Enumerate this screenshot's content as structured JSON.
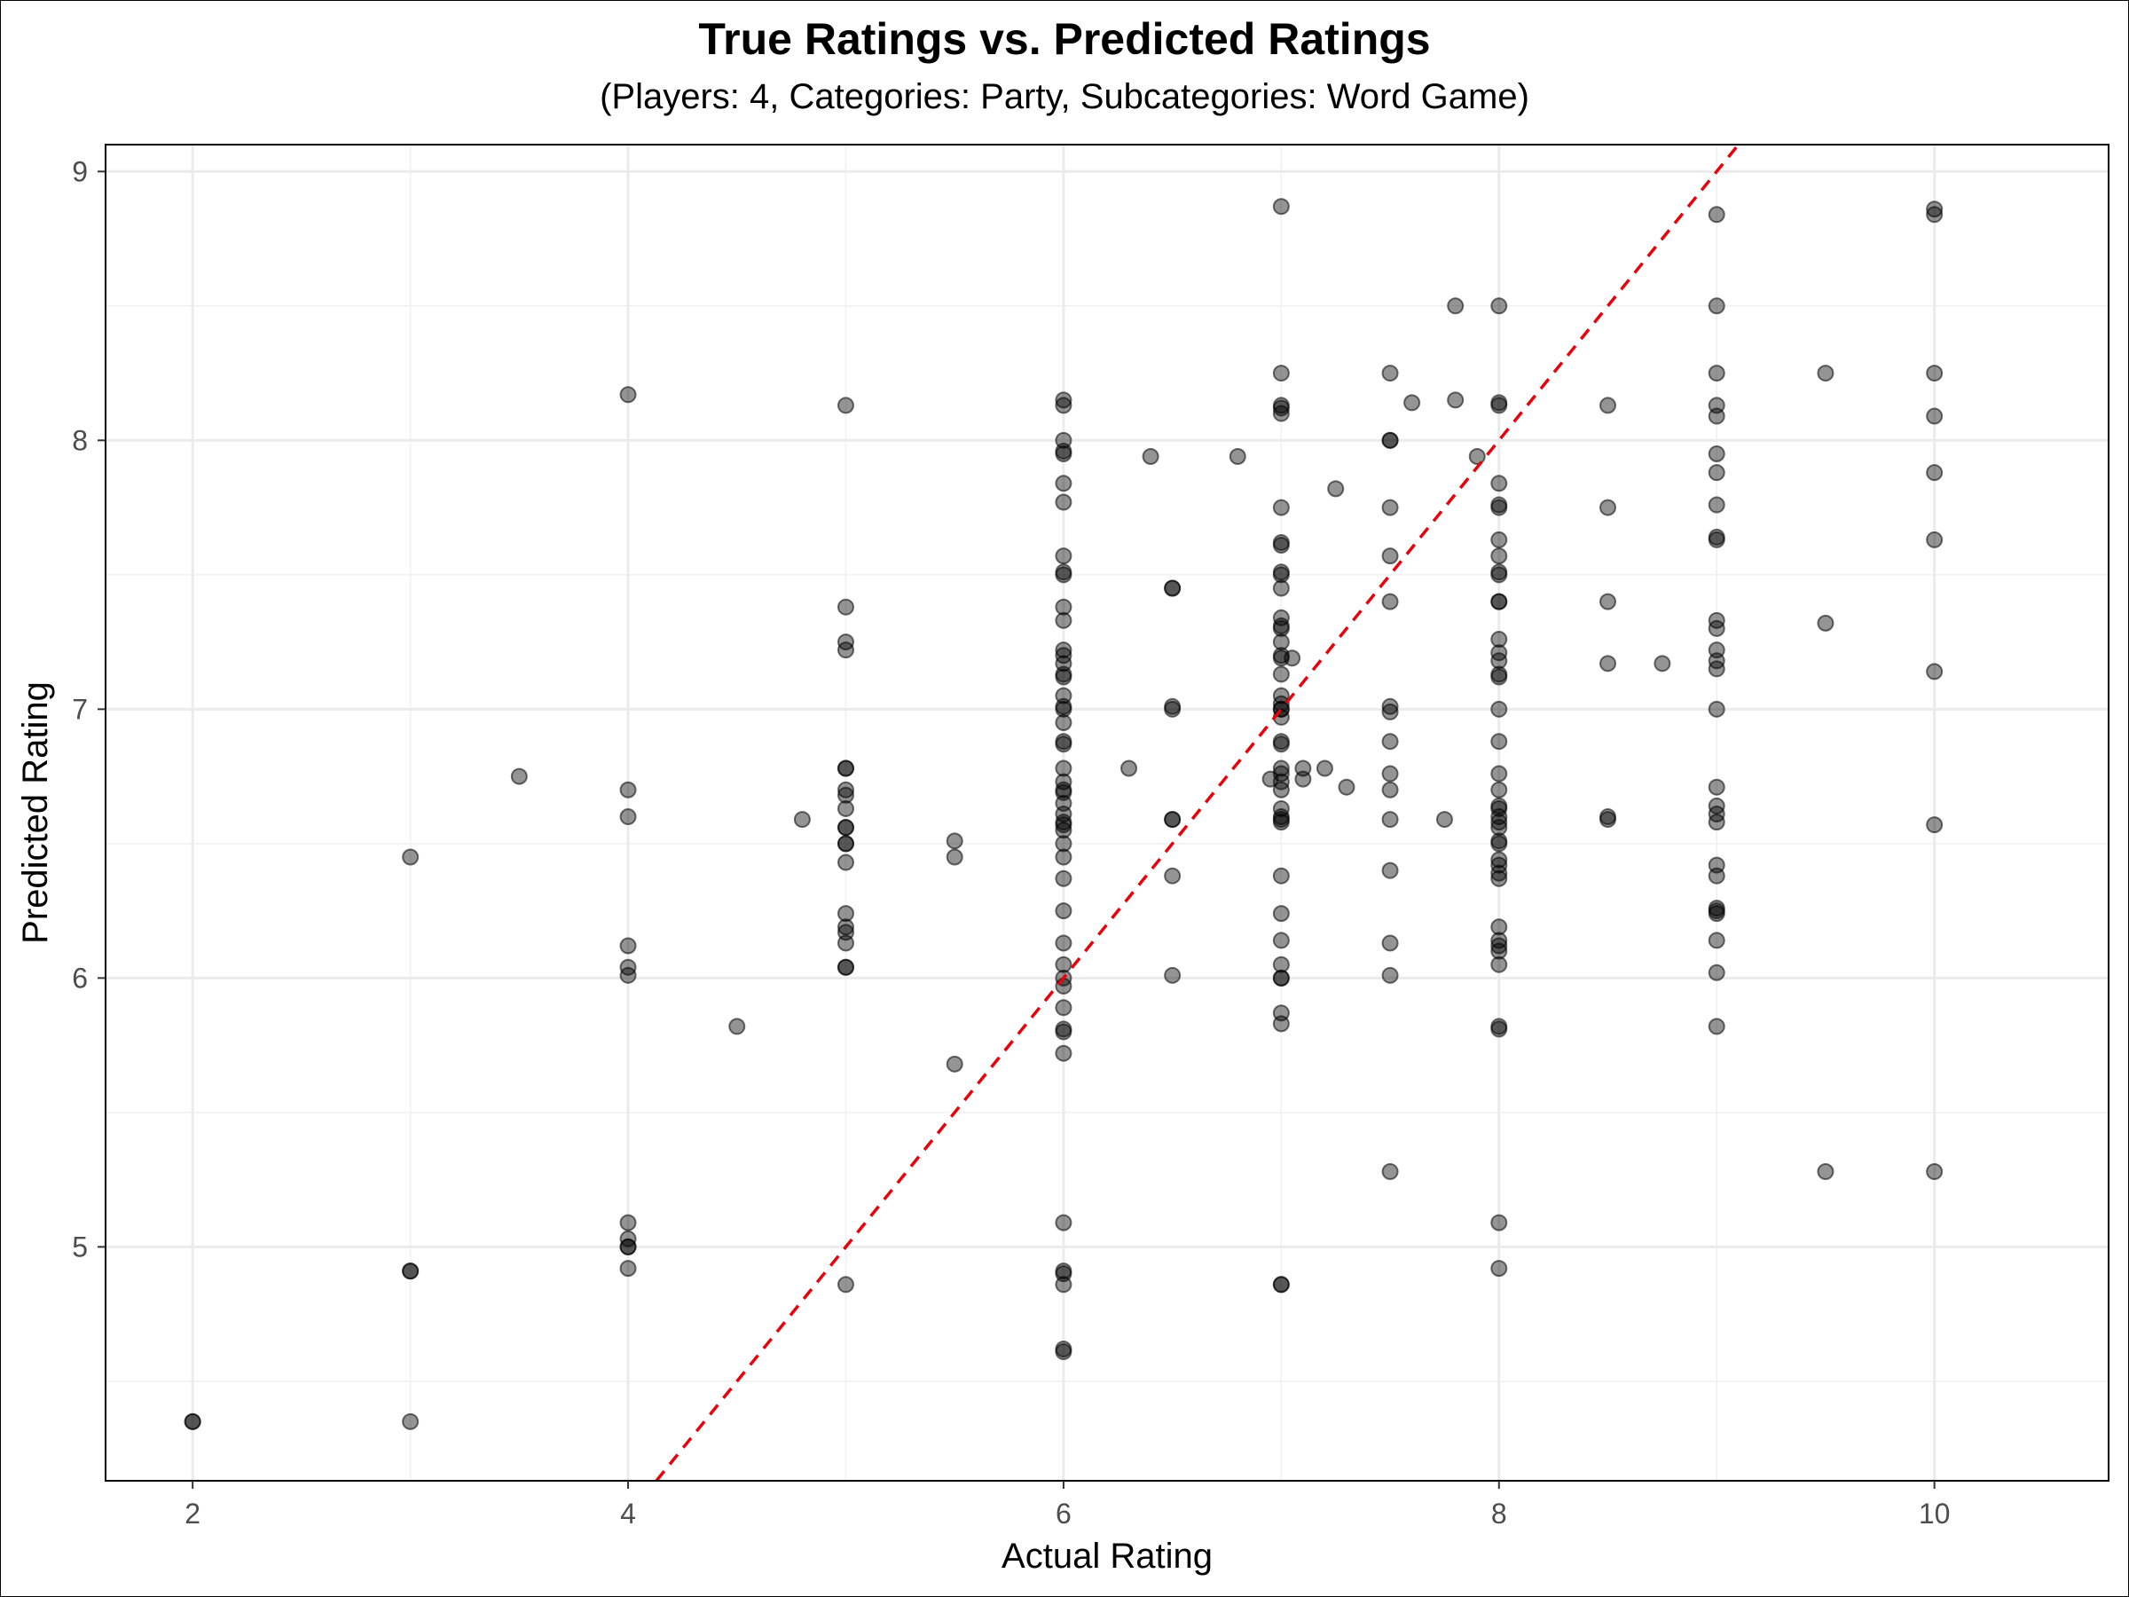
{
  "chart_data": {
    "type": "scatter",
    "title": "True Ratings vs. Predicted Ratings",
    "subtitle": "(Players: 4, Categories: Party, Subcategories: Word Game)",
    "xlabel": "Actual Rating",
    "ylabel": "Predicted Rating",
    "xlim": [
      1.6,
      10.8
    ],
    "ylim": [
      4.13,
      9.1
    ],
    "x_ticks": [
      "2",
      "4",
      "6",
      "8",
      "10"
    ],
    "y_ticks": [
      "5",
      "6",
      "7",
      "8",
      "9"
    ],
    "grid": true,
    "point_color": "#000000",
    "point_opacity": 0.42,
    "reference_line": {
      "slope": 1,
      "intercept": 0,
      "color": "#e8000b",
      "style": "dashed"
    },
    "points": [
      [
        2,
        4.35
      ],
      [
        2,
        4.35
      ],
      [
        3,
        6.45
      ],
      [
        3,
        4.91
      ],
      [
        3,
        4.91
      ],
      [
        3,
        4.35
      ],
      [
        3.5,
        6.75
      ],
      [
        4,
        8.17
      ],
      [
        4,
        6.7
      ],
      [
        4,
        6.6
      ],
      [
        4,
        6.12
      ],
      [
        4,
        6.04
      ],
      [
        4,
        6.01
      ],
      [
        4,
        5.09
      ],
      [
        4,
        5.03
      ],
      [
        4,
        5.0
      ],
      [
        4,
        5.0
      ],
      [
        4,
        4.92
      ],
      [
        4.5,
        5.82
      ],
      [
        4.8,
        6.59
      ],
      [
        5,
        8.13
      ],
      [
        5,
        7.38
      ],
      [
        5,
        7.25
      ],
      [
        5,
        7.22
      ],
      [
        5,
        6.78
      ],
      [
        5,
        6.78
      ],
      [
        5,
        6.7
      ],
      [
        5,
        6.68
      ],
      [
        5,
        6.63
      ],
      [
        5,
        6.56
      ],
      [
        5,
        6.56
      ],
      [
        5,
        6.5
      ],
      [
        5,
        6.5
      ],
      [
        5,
        6.43
      ],
      [
        5,
        6.24
      ],
      [
        5,
        6.19
      ],
      [
        5,
        6.17
      ],
      [
        5,
        6.13
      ],
      [
        5,
        6.04
      ],
      [
        5,
        6.04
      ],
      [
        5,
        4.86
      ],
      [
        5.5,
        6.51
      ],
      [
        5.5,
        6.45
      ],
      [
        5.5,
        5.68
      ],
      [
        6,
        8.15
      ],
      [
        6,
        8.13
      ],
      [
        6,
        8.0
      ],
      [
        6,
        7.96
      ],
      [
        6,
        7.95
      ],
      [
        6,
        7.84
      ],
      [
        6,
        7.77
      ],
      [
        6,
        7.57
      ],
      [
        6,
        7.51
      ],
      [
        6,
        7.5
      ],
      [
        6,
        7.38
      ],
      [
        6,
        7.33
      ],
      [
        6,
        7.22
      ],
      [
        6,
        7.2
      ],
      [
        6,
        7.17
      ],
      [
        6,
        7.13
      ],
      [
        6,
        7.12
      ],
      [
        6,
        7.05
      ],
      [
        6,
        7.01
      ],
      [
        6,
        7.0
      ],
      [
        6,
        6.95
      ],
      [
        6,
        6.88
      ],
      [
        6,
        6.87
      ],
      [
        6,
        6.78
      ],
      [
        6,
        6.73
      ],
      [
        6,
        6.7
      ],
      [
        6,
        6.69
      ],
      [
        6,
        6.65
      ],
      [
        6,
        6.61
      ],
      [
        6,
        6.58
      ],
      [
        6,
        6.57
      ],
      [
        6,
        6.55
      ],
      [
        6,
        6.5
      ],
      [
        6,
        6.45
      ],
      [
        6,
        6.37
      ],
      [
        6,
        6.25
      ],
      [
        6,
        6.13
      ],
      [
        6,
        6.05
      ],
      [
        6,
        6.0
      ],
      [
        6,
        5.97
      ],
      [
        6,
        5.89
      ],
      [
        6,
        5.81
      ],
      [
        6,
        5.8
      ],
      [
        6,
        5.72
      ],
      [
        6,
        5.09
      ],
      [
        6,
        4.91
      ],
      [
        6,
        4.9
      ],
      [
        6,
        4.86
      ],
      [
        6,
        4.62
      ],
      [
        6,
        4.61
      ],
      [
        6.3,
        6.78
      ],
      [
        6.4,
        7.94
      ],
      [
        6.5,
        7.45
      ],
      [
        6.5,
        7.45
      ],
      [
        6.5,
        7.01
      ],
      [
        6.5,
        7.0
      ],
      [
        6.5,
        6.59
      ],
      [
        6.5,
        6.59
      ],
      [
        6.5,
        6.38
      ],
      [
        6.5,
        6.01
      ],
      [
        6.8,
        7.94
      ],
      [
        6.95,
        6.74
      ],
      [
        7,
        8.87
      ],
      [
        7,
        8.25
      ],
      [
        7,
        8.13
      ],
      [
        7,
        8.12
      ],
      [
        7,
        8.1
      ],
      [
        7,
        7.75
      ],
      [
        7,
        7.62
      ],
      [
        7,
        7.61
      ],
      [
        7,
        7.51
      ],
      [
        7,
        7.5
      ],
      [
        7,
        7.45
      ],
      [
        7,
        7.34
      ],
      [
        7,
        7.31
      ],
      [
        7,
        7.3
      ],
      [
        7,
        7.25
      ],
      [
        7,
        7.2
      ],
      [
        7,
        7.19
      ],
      [
        7,
        7.13
      ],
      [
        7,
        7.05
      ],
      [
        7,
        7.02
      ],
      [
        7,
        7.0
      ],
      [
        7,
        7.0
      ],
      [
        7,
        6.97
      ],
      [
        7,
        6.88
      ],
      [
        7,
        6.87
      ],
      [
        7,
        6.78
      ],
      [
        7,
        6.76
      ],
      [
        7,
        6.73
      ],
      [
        7,
        6.7
      ],
      [
        7,
        6.63
      ],
      [
        7,
        6.6
      ],
      [
        7,
        6.59
      ],
      [
        7,
        6.58
      ],
      [
        7,
        6.38
      ],
      [
        7,
        6.24
      ],
      [
        7,
        6.14
      ],
      [
        7,
        6.05
      ],
      [
        7,
        6.0
      ],
      [
        7,
        6.0
      ],
      [
        7,
        5.87
      ],
      [
        7,
        5.83
      ],
      [
        7,
        4.86
      ],
      [
        7,
        4.86
      ],
      [
        7.05,
        7.19
      ],
      [
        7.1,
        6.78
      ],
      [
        7.1,
        6.74
      ],
      [
        7.2,
        6.78
      ],
      [
        7.25,
        7.82
      ],
      [
        7.3,
        6.71
      ],
      [
        7.5,
        8.25
      ],
      [
        7.5,
        8.0
      ],
      [
        7.5,
        8.0
      ],
      [
        7.5,
        7.75
      ],
      [
        7.5,
        7.57
      ],
      [
        7.5,
        7.4
      ],
      [
        7.5,
        7.01
      ],
      [
        7.5,
        6.99
      ],
      [
        7.5,
        6.88
      ],
      [
        7.5,
        6.76
      ],
      [
        7.5,
        6.7
      ],
      [
        7.5,
        6.59
      ],
      [
        7.5,
        6.4
      ],
      [
        7.5,
        6.13
      ],
      [
        7.5,
        6.01
      ],
      [
        7.5,
        5.28
      ],
      [
        7.6,
        8.14
      ],
      [
        7.75,
        6.59
      ],
      [
        7.8,
        8.5
      ],
      [
        7.8,
        8.15
      ],
      [
        7.9,
        7.94
      ],
      [
        8,
        8.5
      ],
      [
        8,
        8.14
      ],
      [
        8,
        8.13
      ],
      [
        8,
        7.84
      ],
      [
        8,
        7.76
      ],
      [
        8,
        7.75
      ],
      [
        8,
        7.63
      ],
      [
        8,
        7.57
      ],
      [
        8,
        7.51
      ],
      [
        8,
        7.5
      ],
      [
        8,
        7.4
      ],
      [
        8,
        7.4
      ],
      [
        8,
        7.26
      ],
      [
        8,
        7.21
      ],
      [
        8,
        7.18
      ],
      [
        8,
        7.13
      ],
      [
        8,
        7.12
      ],
      [
        8,
        7.0
      ],
      [
        8,
        6.88
      ],
      [
        8,
        6.76
      ],
      [
        8,
        6.7
      ],
      [
        8,
        6.64
      ],
      [
        8,
        6.63
      ],
      [
        8,
        6.6
      ],
      [
        8,
        6.58
      ],
      [
        8,
        6.56
      ],
      [
        8,
        6.51
      ],
      [
        8,
        6.5
      ],
      [
        8,
        6.44
      ],
      [
        8,
        6.42
      ],
      [
        8,
        6.39
      ],
      [
        8,
        6.37
      ],
      [
        8,
        6.19
      ],
      [
        8,
        6.14
      ],
      [
        8,
        6.12
      ],
      [
        8,
        6.1
      ],
      [
        8,
        6.05
      ],
      [
        8,
        5.82
      ],
      [
        8,
        5.81
      ],
      [
        8,
        5.09
      ],
      [
        8,
        4.92
      ],
      [
        8.5,
        8.13
      ],
      [
        8.5,
        7.75
      ],
      [
        8.5,
        7.4
      ],
      [
        8.5,
        7.17
      ],
      [
        8.5,
        6.6
      ],
      [
        8.5,
        6.59
      ],
      [
        8.75,
        7.17
      ],
      [
        9,
        8.84
      ],
      [
        9,
        8.5
      ],
      [
        9,
        8.25
      ],
      [
        9,
        8.13
      ],
      [
        9,
        8.09
      ],
      [
        9,
        7.95
      ],
      [
        9,
        7.88
      ],
      [
        9,
        7.76
      ],
      [
        9,
        7.64
      ],
      [
        9,
        7.63
      ],
      [
        9,
        7.33
      ],
      [
        9,
        7.3
      ],
      [
        9,
        7.22
      ],
      [
        9,
        7.18
      ],
      [
        9,
        7.15
      ],
      [
        9,
        7.0
      ],
      [
        9,
        6.71
      ],
      [
        9,
        6.64
      ],
      [
        9,
        6.61
      ],
      [
        9,
        6.58
      ],
      [
        9,
        6.42
      ],
      [
        9,
        6.38
      ],
      [
        9,
        6.26
      ],
      [
        9,
        6.25
      ],
      [
        9,
        6.24
      ],
      [
        9,
        6.14
      ],
      [
        9,
        6.02
      ],
      [
        9,
        5.82
      ],
      [
        9.5,
        8.25
      ],
      [
        9.5,
        7.32
      ],
      [
        9.5,
        5.28
      ],
      [
        10,
        8.86
      ],
      [
        10,
        8.84
      ],
      [
        10,
        8.25
      ],
      [
        10,
        8.09
      ],
      [
        10,
        7.88
      ],
      [
        10,
        7.63
      ],
      [
        10,
        7.14
      ],
      [
        10,
        6.57
      ],
      [
        10,
        5.28
      ]
    ]
  }
}
